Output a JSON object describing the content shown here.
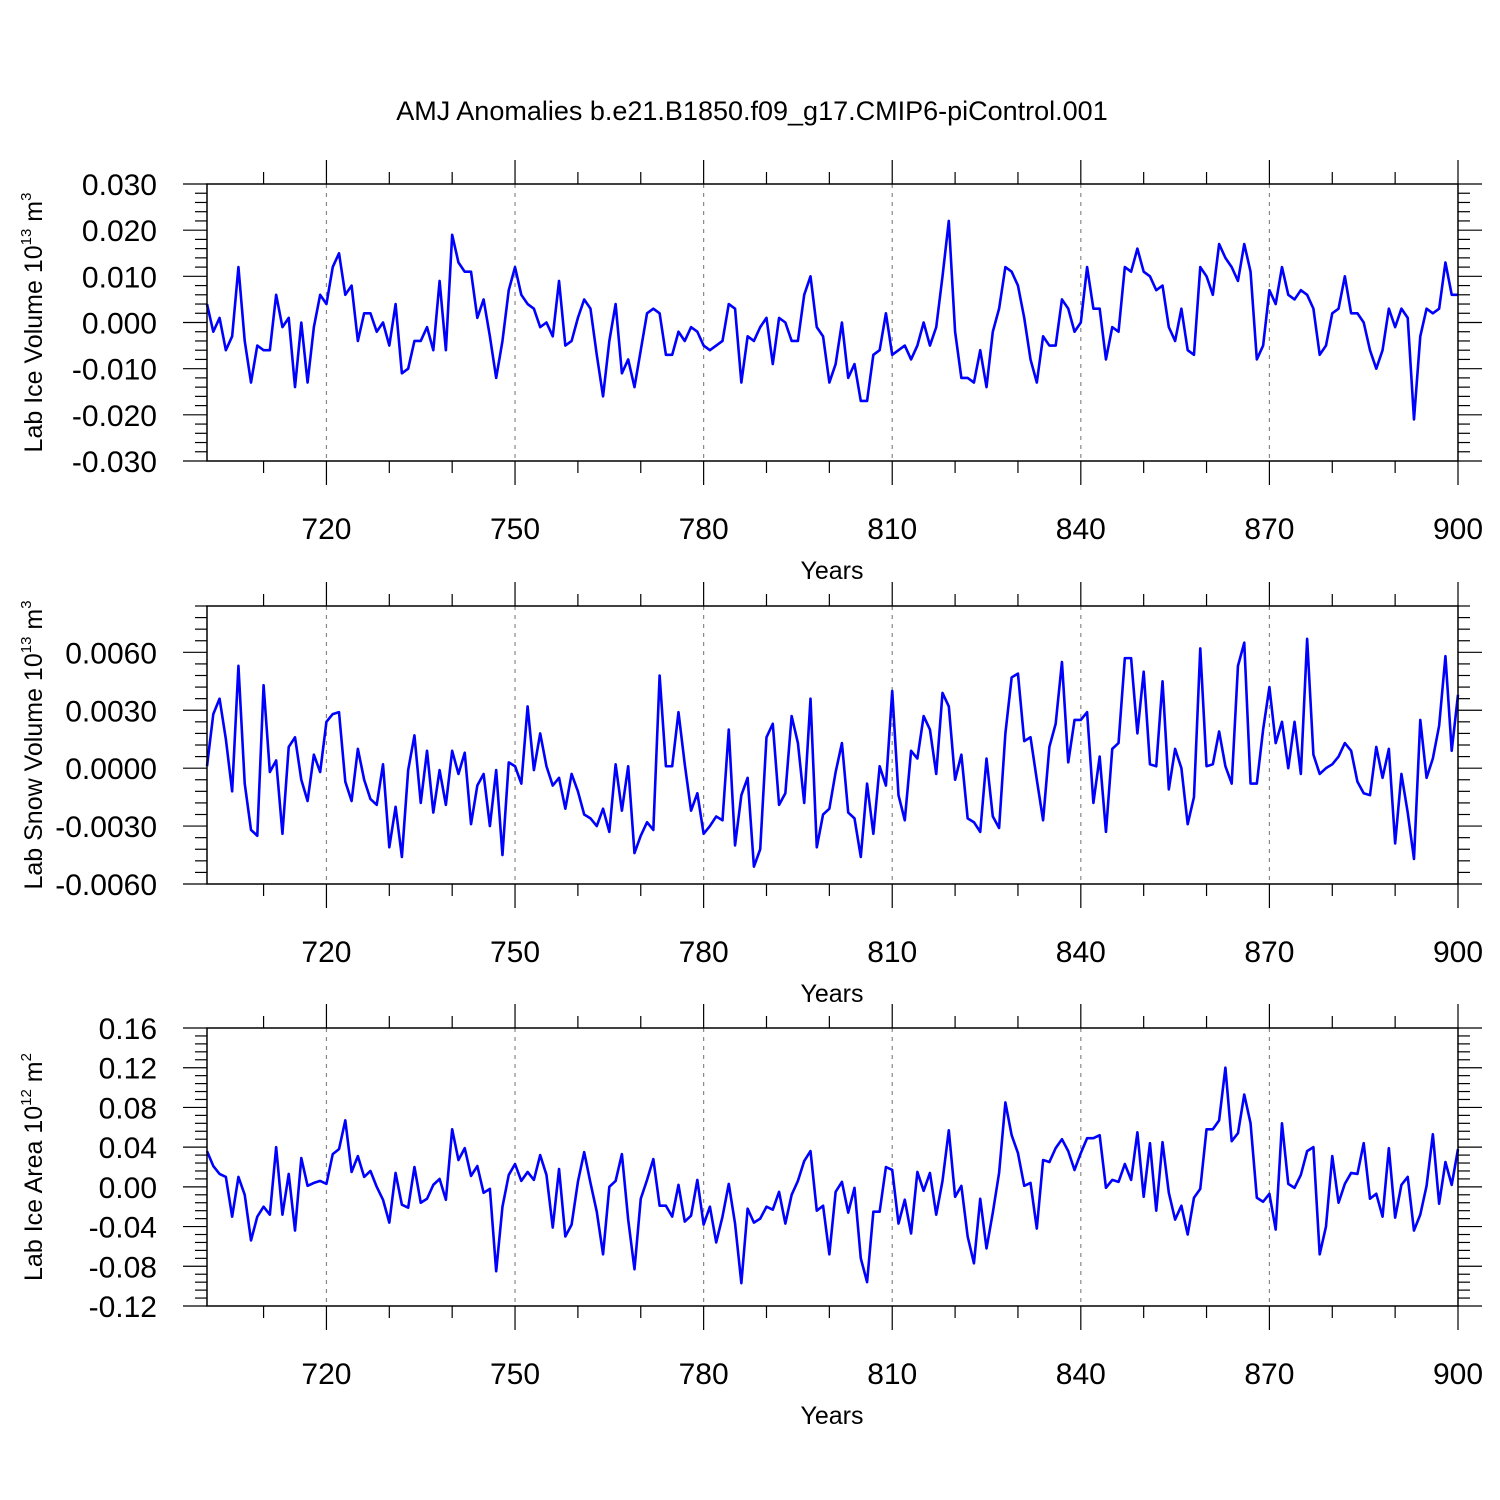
{
  "figure": {
    "title": "AMJ Anomalies b.e21.B1850.f09_g17.CMIP6-piControl.001"
  },
  "chart_data": [
    {
      "type": "line",
      "ylabel": {
        "base": "Lab Ice Volume 10",
        "exp": "13",
        "unit": " m",
        "unit_exp": "3"
      },
      "xlabel": "Years",
      "xlim": [
        701,
        900
      ],
      "ylim": [
        -0.03,
        0.03
      ],
      "xticks": [
        720,
        750,
        780,
        810,
        840,
        870,
        900
      ],
      "yticks": [
        -0.03,
        -0.02,
        -0.01,
        0.0,
        0.01,
        0.02,
        0.03
      ],
      "ytick_labels": [
        "-0.030",
        "-0.020",
        "-0.010",
        "0.000",
        "0.010",
        "0.020",
        "0.030"
      ],
      "grid": "dashed vertical at x ticks",
      "line_color": "#0000ff",
      "values": [
        0.004,
        -0.002,
        0.001,
        -0.006,
        -0.003,
        0.012,
        -0.004,
        -0.013,
        -0.005,
        -0.006,
        -0.006,
        0.006,
        -0.001,
        0.001,
        -0.014,
        0.0,
        -0.013,
        -0.001,
        0.006,
        0.004,
        0.012,
        0.015,
        0.006,
        0.008,
        -0.004,
        0.002,
        0.002,
        -0.002,
        0.0,
        -0.005,
        0.004,
        -0.011,
        -0.01,
        -0.004,
        -0.004,
        -0.001,
        -0.006,
        0.009,
        -0.006,
        0.019,
        0.013,
        0.011,
        0.011,
        0.001,
        0.005,
        -0.003,
        -0.012,
        -0.004,
        0.007,
        0.012,
        0.006,
        0.004,
        0.003,
        -0.001,
        0.0,
        -0.003,
        0.009,
        -0.005,
        -0.004,
        0.001,
        0.005,
        0.003,
        -0.007,
        -0.016,
        -0.004,
        0.004,
        -0.011,
        -0.008,
        -0.014,
        -0.006,
        0.002,
        0.003,
        0.002,
        -0.007,
        -0.007,
        -0.002,
        -0.004,
        -0.001,
        -0.002,
        -0.005,
        -0.006,
        -0.005,
        -0.004,
        0.004,
        0.003,
        -0.013,
        -0.003,
        -0.004,
        -0.001,
        0.001,
        -0.009,
        0.001,
        0.0,
        -0.004,
        -0.004,
        0.006,
        0.01,
        -0.001,
        -0.003,
        -0.013,
        -0.009,
        0.0,
        -0.012,
        -0.009,
        -0.017,
        -0.017,
        -0.007,
        -0.006,
        0.002,
        -0.007,
        -0.006,
        -0.005,
        -0.008,
        -0.005,
        0.0,
        -0.005,
        -0.001,
        0.01,
        0.022,
        -0.002,
        -0.012,
        -0.012,
        -0.013,
        -0.006,
        -0.014,
        -0.002,
        0.003,
        0.012,
        0.011,
        0.008,
        0.001,
        -0.008,
        -0.013,
        -0.003,
        -0.005,
        -0.005,
        0.005,
        0.003,
        -0.002,
        0.0,
        0.012,
        0.003,
        0.003,
        -0.008,
        -0.001,
        -0.002,
        0.012,
        0.011,
        0.016,
        0.011,
        0.01,
        0.007,
        0.008,
        -0.001,
        -0.004,
        0.003,
        -0.006,
        -0.007,
        0.012,
        0.01,
        0.006,
        0.017,
        0.014,
        0.012,
        0.009,
        0.017,
        0.011,
        -0.008,
        -0.005,
        0.007,
        0.004,
        0.012,
        0.006,
        0.005,
        0.007,
        0.006,
        0.003,
        -0.007,
        -0.005,
        0.002,
        0.003,
        0.01,
        0.002,
        0.002,
        0.0,
        -0.006,
        -0.01,
        -0.006,
        0.003,
        -0.001,
        0.003,
        0.001,
        -0.021,
        -0.003,
        0.003,
        0.002,
        0.003,
        0.013,
        0.006,
        0.006
      ]
    },
    {
      "type": "line",
      "ylabel": {
        "base": "Lab Snow Volume 10",
        "exp": "13",
        "unit": " m",
        "unit_exp": "3"
      },
      "xlabel": "Years",
      "xlim": [
        701,
        900
      ],
      "ylim": [
        -0.006,
        0.0084
      ],
      "xticks": [
        720,
        750,
        780,
        810,
        840,
        870,
        900
      ],
      "yticks": [
        -0.006,
        -0.003,
        0.0,
        0.003,
        0.006
      ],
      "ytick_labels": [
        "-0.0060",
        "-0.0030",
        "0.0000",
        "0.0030",
        "0.0060"
      ],
      "grid": "dashed vertical at x ticks",
      "line_color": "#0000ff",
      "values": [
        0.0001,
        0.0028,
        0.0036,
        0.0015,
        -0.0012,
        0.0053,
        -0.0008,
        -0.0032,
        -0.0035,
        0.0043,
        -0.0002,
        0.0004,
        -0.0034,
        0.0011,
        0.0016,
        -0.0006,
        -0.0017,
        0.0007,
        -0.0002,
        0.0024,
        0.0028,
        0.0029,
        -0.0007,
        -0.0017,
        0.001,
        -0.0006,
        -0.0016,
        -0.0019,
        0.0002,
        -0.0041,
        -0.002,
        -0.0046,
        -0.0001,
        0.0017,
        -0.0018,
        0.0009,
        -0.0023,
        -0.0001,
        -0.0019,
        0.0009,
        -0.0003,
        0.0008,
        -0.0029,
        -0.0009,
        -0.0003,
        -0.003,
        -0.0001,
        -0.0045,
        0.0003,
        0.0001,
        -0.0008,
        0.0032,
        -0.0001,
        0.0018,
        0.0001,
        -0.0009,
        -0.0005,
        -0.0021,
        -0.0003,
        -0.0012,
        -0.0024,
        -0.0026,
        -0.003,
        -0.0021,
        -0.0033,
        0.0002,
        -0.0022,
        0.0001,
        -0.0044,
        -0.0035,
        -0.0028,
        -0.0032,
        0.0048,
        0.0001,
        0.0001,
        0.0029,
        0.0002,
        -0.0022,
        -0.0013,
        -0.0034,
        -0.003,
        -0.0025,
        -0.0027,
        0.002,
        -0.004,
        -0.0014,
        -0.0005,
        -0.0051,
        -0.0042,
        0.0016,
        0.0023,
        -0.0019,
        -0.0013,
        0.0027,
        0.0013,
        -0.0018,
        0.0036,
        -0.0041,
        -0.0024,
        -0.0021,
        -0.0002,
        0.0013,
        -0.0023,
        -0.0026,
        -0.0046,
        -0.0008,
        -0.0034,
        0.0001,
        -0.0009,
        0.004,
        -0.0014,
        -0.0027,
        0.0009,
        0.0005,
        0.0027,
        0.002,
        -0.0003,
        0.0039,
        0.0032,
        -0.0006,
        0.0007,
        -0.0026,
        -0.0028,
        -0.0033,
        0.0005,
        -0.0025,
        -0.0031,
        0.0018,
        0.0047,
        0.0049,
        0.0014,
        0.0016,
        -0.0006,
        -0.0027,
        0.0011,
        0.0023,
        0.0055,
        0.0003,
        0.0025,
        0.0025,
        0.0029,
        -0.0018,
        0.0006,
        -0.0033,
        0.001,
        0.0013,
        0.0057,
        0.0057,
        0.0018,
        0.005,
        0.0002,
        0.0001,
        0.0045,
        -0.0011,
        0.001,
        0.0,
        -0.0029,
        -0.0015,
        0.0062,
        0.0001,
        0.0002,
        0.0019,
        0.0001,
        -0.0008,
        0.0053,
        0.0065,
        -0.0008,
        -0.0008,
        0.002,
        0.0042,
        0.0013,
        0.0024,
        0.0,
        0.0024,
        -0.0003,
        0.0067,
        0.0007,
        -0.0003,
        0.0,
        0.0002,
        0.0006,
        0.0013,
        0.0009,
        -0.0007,
        -0.0013,
        -0.0014,
        0.0011,
        -0.0005,
        0.001,
        -0.0039,
        -0.0003,
        -0.0023,
        -0.0047,
        0.0025,
        -0.0005,
        0.0005,
        0.0022,
        0.0058,
        0.0009,
        0.0038
      ]
    },
    {
      "type": "line",
      "ylabel": {
        "base": "Lab Ice Area 10",
        "exp": "12",
        "unit": " m",
        "unit_exp": "2"
      },
      "xlabel": "Years",
      "xlim": [
        701,
        900
      ],
      "ylim": [
        -0.12,
        0.16
      ],
      "xticks": [
        720,
        750,
        780,
        810,
        840,
        870,
        900
      ],
      "yticks": [
        -0.12,
        -0.08,
        -0.04,
        0.0,
        0.04,
        0.08,
        0.12,
        0.16
      ],
      "ytick_labels": [
        "-0.12",
        "-0.08",
        "-0.04",
        "0.00",
        "0.04",
        "0.08",
        "0.12",
        "0.16"
      ],
      "grid": "dashed vertical at x ticks",
      "line_color": "#0000ff",
      "values": [
        0.036,
        0.021,
        0.013,
        0.01,
        -0.03,
        0.01,
        -0.008,
        -0.054,
        -0.03,
        -0.02,
        -0.028,
        0.04,
        -0.028,
        0.013,
        -0.044,
        0.029,
        0.001,
        0.004,
        0.006,
        0.003,
        0.033,
        0.038,
        0.067,
        0.015,
        0.031,
        0.01,
        0.016,
        0.0,
        -0.013,
        -0.036,
        0.014,
        -0.018,
        -0.021,
        0.02,
        -0.016,
        -0.012,
        0.002,
        0.008,
        -0.013,
        0.058,
        0.027,
        0.039,
        0.011,
        0.021,
        -0.006,
        -0.002,
        -0.085,
        -0.02,
        0.012,
        0.023,
        0.006,
        0.015,
        0.007,
        0.032,
        0.012,
        -0.041,
        0.018,
        -0.05,
        -0.038,
        0.005,
        0.035,
        0.004,
        -0.025,
        -0.068,
        0.0,
        0.006,
        0.033,
        -0.033,
        -0.083,
        -0.012,
        0.007,
        0.028,
        -0.019,
        -0.019,
        -0.03,
        0.002,
        -0.035,
        -0.029,
        0.007,
        -0.038,
        -0.02,
        -0.056,
        -0.03,
        0.003,
        -0.037,
        -0.097,
        -0.022,
        -0.036,
        -0.032,
        -0.02,
        -0.023,
        -0.005,
        -0.037,
        -0.008,
        0.006,
        0.026,
        0.036,
        -0.024,
        -0.019,
        -0.068,
        -0.005,
        0.005,
        -0.026,
        -0.001,
        -0.072,
        -0.096,
        -0.025,
        -0.025,
        0.02,
        0.017,
        -0.037,
        -0.013,
        -0.047,
        0.015,
        -0.004,
        0.014,
        -0.028,
        0.006,
        0.057,
        -0.01,
        0.001,
        -0.05,
        -0.077,
        -0.012,
        -0.062,
        -0.026,
        0.014,
        0.085,
        0.052,
        0.034,
        0.001,
        0.004,
        -0.042,
        0.027,
        0.025,
        0.039,
        0.048,
        0.036,
        0.017,
        0.034,
        0.049,
        0.049,
        0.052,
        -0.001,
        0.007,
        0.005,
        0.023,
        0.007,
        0.055,
        -0.01,
        0.044,
        -0.024,
        0.045,
        -0.006,
        -0.033,
        -0.019,
        -0.048,
        -0.011,
        -0.002,
        0.058,
        0.058,
        0.067,
        0.12,
        0.046,
        0.054,
        0.093,
        0.064,
        -0.011,
        -0.015,
        -0.007,
        -0.043,
        0.064,
        0.003,
        -0.001,
        0.012,
        0.036,
        0.04,
        -0.068,
        -0.04,
        0.031,
        -0.016,
        0.003,
        0.014,
        0.013,
        0.044,
        -0.012,
        -0.007,
        -0.03,
        0.039,
        -0.031,
        0.002,
        0.01,
        -0.044,
        -0.028,
        0.001,
        0.053,
        -0.017,
        0.025,
        0.002,
        0.038
      ]
    }
  ]
}
